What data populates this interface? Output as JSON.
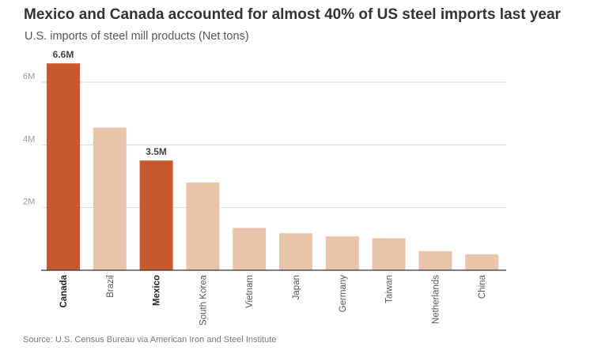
{
  "title": "Mexico and Canada accounted for almost 40% of US steel imports last year",
  "subtitle": "U.S. imports of steel mill products (Net tons)",
  "source": "Source: U.S. Census Bureau via American Iron and Steel Institute",
  "colors": {
    "highlight": "#c65a2e",
    "base": "#e9c3aa",
    "grid": "#d9d9d9",
    "tick_text": "#999999",
    "label_text": "#444444"
  },
  "chart_data": {
    "type": "bar",
    "title": "Mexico and Canada accounted for almost 40% of US steel imports last year",
    "subtitle": "U.S. imports of steel mill products (Net tons)",
    "categories": [
      "Canada",
      "Brazil",
      "Mexico",
      "South Korea",
      "Vietnam",
      "Japan",
      "Germany",
      "Taiwan",
      "Netherlands",
      "China"
    ],
    "values": [
      6600000,
      4550000,
      3500000,
      2800000,
      1350000,
      1180000,
      1080000,
      1020000,
      610000,
      510000
    ],
    "highlighted": [
      "Canada",
      "Mexico"
    ],
    "data_labels": {
      "Canada": "6.6M",
      "Mexico": "3.5M"
    },
    "ylim": [
      0,
      6600000
    ],
    "yticks": [
      {
        "value": 2000000,
        "label": "2M"
      },
      {
        "value": 4000000,
        "label": "4M"
      },
      {
        "value": 6000000,
        "label": "6M"
      }
    ],
    "grid": true,
    "legend": "none",
    "xlabel": "",
    "ylabel": ""
  }
}
